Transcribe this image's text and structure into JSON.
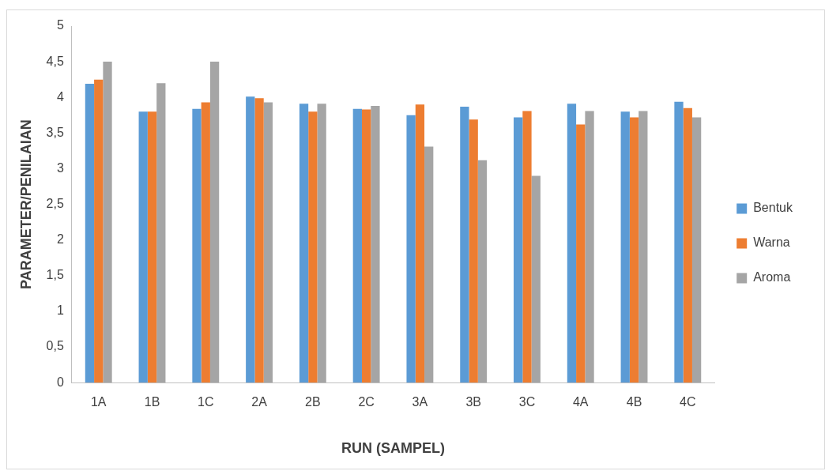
{
  "chart_data": {
    "type": "bar",
    "xlabel": "RUN (SAMPEL)",
    "ylabel": "PARAMETER/PENILAIAN",
    "categories": [
      "1A",
      "1B",
      "1C",
      "2A",
      "2B",
      "2C",
      "3A",
      "3B",
      "3C",
      "4A",
      "4B",
      "4C"
    ],
    "series": [
      {
        "name": "Bentuk",
        "color": "#5b9bd5",
        "values": [
          4.19,
          3.8,
          3.84,
          4.01,
          3.91,
          3.84,
          3.75,
          3.87,
          3.72,
          3.91,
          3.8,
          3.94
        ]
      },
      {
        "name": "Warna",
        "color": "#ed7d31",
        "values": [
          4.25,
          3.8,
          3.93,
          3.99,
          3.8,
          3.83,
          3.9,
          3.69,
          3.81,
          3.62,
          3.72,
          3.85
        ]
      },
      {
        "name": "Aroma",
        "color": "#a5a5a5",
        "values": [
          4.5,
          4.2,
          4.5,
          3.93,
          3.91,
          3.88,
          3.31,
          3.12,
          2.9,
          3.81,
          3.81,
          3.72
        ]
      }
    ],
    "ylim": [
      0,
      5
    ],
    "yticks": [
      0,
      {
        "value": 0.5,
        "label": "0,5"
      },
      1,
      {
        "value": 1.5,
        "label": "1,5"
      },
      2,
      {
        "value": 2.5,
        "label": "2,5"
      },
      3,
      {
        "value": 3.5,
        "label": "3,5"
      },
      4,
      {
        "value": 4.5,
        "label": "4,5"
      },
      5
    ],
    "grid": false,
    "legend": "right"
  }
}
